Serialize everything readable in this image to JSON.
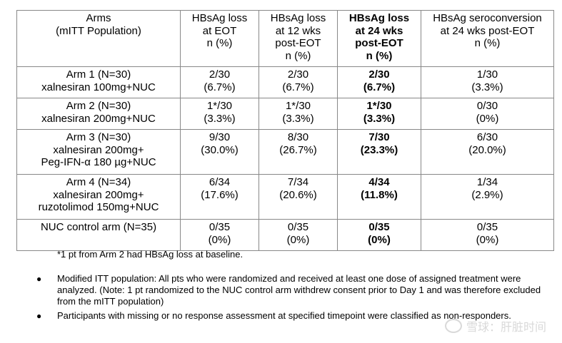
{
  "table": {
    "headers": [
      [
        "Arms",
        "(mITT Population)"
      ],
      [
        "HBsAg loss",
        "at EOT",
        "n (%)"
      ],
      [
        "HBsAg loss",
        "at 12 wks",
        "post-EOT",
        "n (%)"
      ],
      [
        "HBsAg loss",
        "at 24 wks",
        "post-EOT",
        "n (%)"
      ],
      [
        "HBsAg seroconversion",
        "at 24 wks post-EOT",
        "n (%)"
      ]
    ],
    "rows": [
      {
        "arm": [
          "Arm 1 (N=30)",
          "xalnesiran 100mg+NUC"
        ],
        "eot": [
          "2/30",
          "(6.7%)"
        ],
        "wk12": [
          "2/30",
          "(6.7%)"
        ],
        "wk24": [
          "2/30",
          "(6.7%)"
        ],
        "sero": [
          "1/30",
          "(3.3%)"
        ]
      },
      {
        "arm": [
          "Arm 2 (N=30)",
          "xalnesiran 200mg+NUC"
        ],
        "eot": [
          "1*/30",
          "(3.3%)"
        ],
        "wk12": [
          "1*/30",
          "(3.3%)"
        ],
        "wk24": [
          "1*/30",
          "(3.3%)"
        ],
        "sero": [
          "0/30",
          "(0%)"
        ]
      },
      {
        "arm": [
          "Arm 3 (N=30)",
          "xalnesiran 200mg+",
          "Peg-IFN-α 180 µg+NUC"
        ],
        "eot": [
          "9/30",
          "(30.0%)"
        ],
        "wk12": [
          "8/30",
          "(26.7%)"
        ],
        "wk24": [
          "7/30",
          "(23.3%)"
        ],
        "sero": [
          "6/30",
          "(20.0%)"
        ]
      },
      {
        "arm": [
          "Arm 4 (N=34)",
          "xalnesiran 200mg+",
          "ruzotolimod 150mg+NUC"
        ],
        "eot": [
          "6/34",
          "(17.6%)"
        ],
        "wk12": [
          "7/34",
          "(20.6%)"
        ],
        "wk24": [
          "4/34",
          "(11.8%)"
        ],
        "sero": [
          "1/34",
          "(2.9%)"
        ]
      },
      {
        "arm": [
          "NUC control arm (N=35)"
        ],
        "eot": [
          "0/35",
          "(0%)"
        ],
        "wk12": [
          "0/35",
          "(0%)"
        ],
        "wk24": [
          "0/35",
          "(0%)"
        ],
        "sero": [
          "0/35",
          "(0%)"
        ]
      }
    ]
  },
  "footnote": "*1 pt from Arm 2 had HBsAg loss at baseline.",
  "notes": [
    "Modified ITT population: All pts who were randomized and received at least one dose of assigned treatment were analyzed. (Note: 1 pt randomized to the NUC control arm withdrew consent prior to Day 1 and was therefore excluded from the mITT population)",
    "Participants with missing or no response assessment at specified timepoint were classified as non-responders."
  ],
  "bullet_glyph": "●",
  "watermark": "雪球：肝脏时间"
}
